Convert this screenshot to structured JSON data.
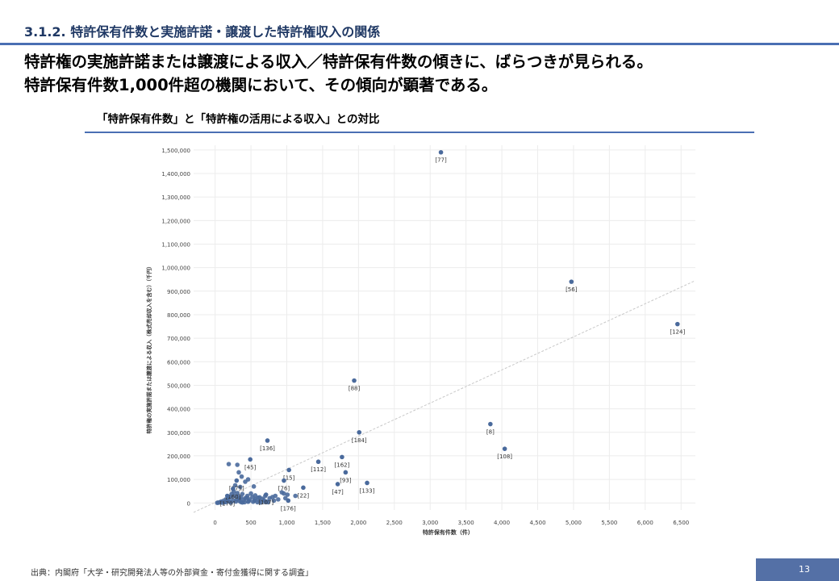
{
  "header": {
    "section_title": "3.1.2. 特許保有件数と実施許諾・譲渡した特許権収入の関係"
  },
  "headline": {
    "line1": "特許権の実施許諾または譲渡による収入／特許保有件数の傾きに、ばらつきが見られる。",
    "line2": "特許保有件数1,000件超の機関において、その傾向が顕著である。"
  },
  "chart_title": "「特許保有件数」と「特許権の活用による収入」との対比",
  "footer": {
    "source": "出典：内閣府「大学・研究開発法人等の外部資金・寄付金獲得に関する調査」",
    "page_number": "13"
  },
  "colors": {
    "point": "#4a6a9c",
    "accent": "#4a6fb3",
    "page_badge": "#5470a6",
    "trend": "#c8c8c8"
  },
  "chart_data": {
    "type": "scatter",
    "title": "「特許保有件数」と「特許権の活用による収入」との対比",
    "xlabel": "特許保有件数（件）",
    "ylabel": "特許権の実施許諾または譲渡による収入（株式売却収入を含む）（千円）",
    "xlim": [
      -300,
      6700
    ],
    "ylim": [
      -30000,
      1520000
    ],
    "xticks": [
      0,
      500,
      1000,
      1500,
      2000,
      2500,
      3000,
      3500,
      4000,
      4500,
      5000,
      5500,
      6000,
      6500
    ],
    "xtick_labels": [
      "0",
      "500",
      "1,000",
      "1,500",
      "2,000",
      "2,500",
      "3,000",
      "3,500",
      "4,000",
      "4,500",
      "5,000",
      "5,500",
      "6,000",
      "6,500"
    ],
    "yticks": [
      0,
      100000,
      200000,
      300000,
      400000,
      500000,
      600000,
      700000,
      800000,
      900000,
      1000000,
      1100000,
      1200000,
      1300000,
      1400000,
      1500000
    ],
    "ytick_labels": [
      "0",
      "100,000",
      "200,000",
      "300,000",
      "400,000",
      "500,000",
      "600,000",
      "700,000",
      "800,000",
      "900,000",
      "1,000,000",
      "1,100,000",
      "1,200,000",
      "1,300,000",
      "1,400,000",
      "1,500,000"
    ],
    "grid": true,
    "trend_line": {
      "x": [
        -300,
        6700
      ],
      "y": [
        -40000,
        945000
      ]
    },
    "labeled_points": [
      {
        "label": "[77]",
        "x": 3150,
        "y": 1490000
      },
      {
        "label": "[56]",
        "x": 4970,
        "y": 940000
      },
      {
        "label": "[124]",
        "x": 6450,
        "y": 760000
      },
      {
        "label": "[88]",
        "x": 1940,
        "y": 520000
      },
      {
        "label": "[8]",
        "x": 3840,
        "y": 335000
      },
      {
        "label": "[184]",
        "x": 2010,
        "y": 300000
      },
      {
        "label": "[136]",
        "x": 730,
        "y": 265000
      },
      {
        "label": "[108]",
        "x": 4040,
        "y": 230000
      },
      {
        "label": "[162]",
        "x": 1770,
        "y": 195000
      },
      {
        "label": "[45]",
        "x": 490,
        "y": 185000
      },
      {
        "label": "[112]",
        "x": 1440,
        "y": 175000
      },
      {
        "label": "[15]",
        "x": 1030,
        "y": 140000
      },
      {
        "label": "[93]",
        "x": 1820,
        "y": 130000
      },
      {
        "label": "[76]",
        "x": 960,
        "y": 95000
      },
      {
        "label": "[175]",
        "x": 300,
        "y": 95000
      },
      {
        "label": "[133]",
        "x": 2120,
        "y": 85000
      },
      {
        "label": "[47]",
        "x": 1710,
        "y": 80000
      },
      {
        "label": "[22]",
        "x": 1230,
        "y": 65000
      },
      {
        "label": "[160]",
        "x": 250,
        "y": 60000
      },
      {
        "label": "[107]",
        "x": 710,
        "y": 35000
      },
      {
        "label": "[170]",
        "x": 170,
        "y": 30000
      },
      {
        "label": "[176]",
        "x": 1020,
        "y": 10000
      }
    ],
    "unlabeled_points": [
      [
        190,
        165000
      ],
      [
        310,
        162000
      ],
      [
        330,
        130000
      ],
      [
        370,
        112000
      ],
      [
        420,
        90000
      ],
      [
        460,
        100000
      ],
      [
        540,
        70000
      ],
      [
        280,
        75000
      ],
      [
        350,
        68000
      ],
      [
        260,
        48000
      ],
      [
        310,
        42000
      ],
      [
        380,
        38000
      ],
      [
        450,
        30000
      ],
      [
        520,
        25000
      ],
      [
        600,
        22000
      ],
      [
        660,
        18000
      ],
      [
        560,
        32000
      ],
      [
        500,
        40000
      ],
      [
        230,
        38000
      ],
      [
        190,
        22000
      ],
      [
        150,
        15000
      ],
      [
        110,
        8000
      ],
      [
        80,
        5000
      ],
      [
        60,
        2000
      ],
      [
        40,
        1000
      ],
      [
        30,
        500
      ],
      [
        130,
        3000
      ],
      [
        200,
        6000
      ],
      [
        250,
        10000
      ],
      [
        300,
        15000
      ],
      [
        340,
        18000
      ],
      [
        400,
        12000
      ],
      [
        420,
        20000
      ],
      [
        470,
        8000
      ],
      [
        480,
        15000
      ],
      [
        550,
        10000
      ],
      [
        620,
        8000
      ],
      [
        680,
        12000
      ],
      [
        720,
        6000
      ],
      [
        760,
        20000
      ],
      [
        800,
        25000
      ],
      [
        840,
        30000
      ],
      [
        930,
        45000
      ],
      [
        960,
        40000
      ],
      [
        980,
        20000
      ],
      [
        1010,
        35000
      ],
      [
        1120,
        30000
      ],
      [
        170,
        10000
      ],
      [
        220,
        25000
      ],
      [
        270,
        30000
      ],
      [
        320,
        28000
      ],
      [
        360,
        24000
      ],
      [
        440,
        22000
      ],
      [
        100,
        1000
      ],
      [
        150,
        4000
      ],
      [
        220,
        2000
      ],
      [
        290,
        6000
      ],
      [
        360,
        4000
      ],
      [
        410,
        3000
      ],
      [
        530,
        5000
      ],
      [
        590,
        3000
      ],
      [
        640,
        2000
      ],
      [
        700,
        4000
      ],
      [
        740,
        3000
      ],
      [
        820,
        10000
      ],
      [
        880,
        15000
      ],
      [
        340,
        8000
      ],
      [
        380,
        2000
      ],
      [
        460,
        5000
      ],
      [
        560,
        16000
      ],
      [
        620,
        24000
      ],
      [
        700,
        30000
      ]
    ]
  }
}
